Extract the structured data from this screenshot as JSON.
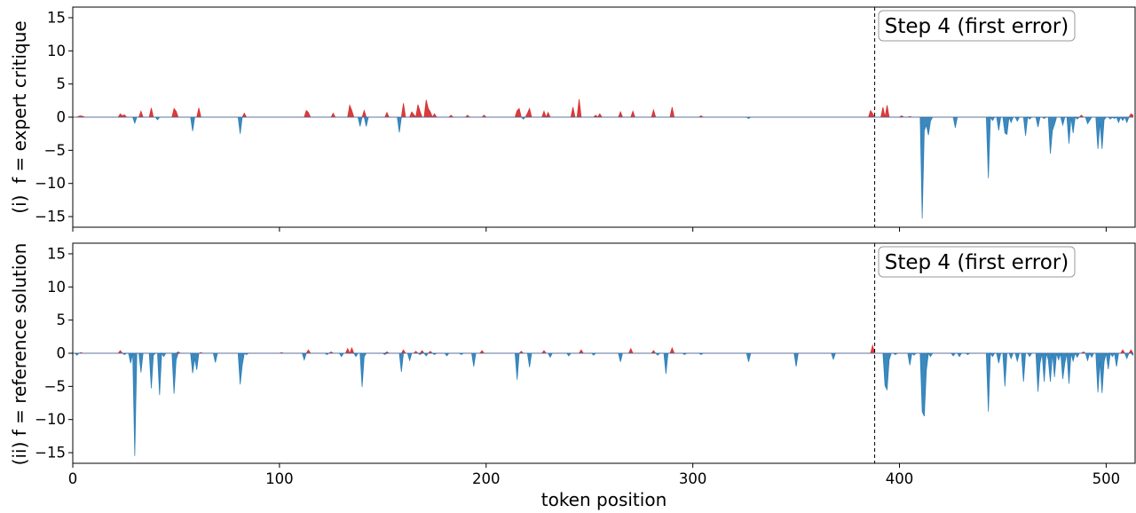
{
  "chart_data": [
    {
      "type": "area",
      "ylabel": "(i)  f = expert critique",
      "xlim": [
        0,
        514
      ],
      "ylim": [
        -16.6,
        16.6
      ],
      "xticks": [
        0,
        100,
        200,
        300,
        400,
        500
      ],
      "xtick_labels": [],
      "yticks": [
        15,
        10,
        5,
        0,
        -5,
        -10,
        -15
      ],
      "ytick_labels": [
        "15",
        "10",
        "5",
        "0",
        "−5",
        "−10",
        "−15"
      ],
      "grid": false,
      "colors": {
        "positive": "#d62728",
        "negative": "#1f77b4"
      },
      "vline": {
        "x": 388,
        "style": "dashed"
      },
      "annotation": {
        "text": "Step 4 (first error)",
        "placement": "top-right"
      },
      "series": [
        {
          "points": [
            [
              3,
              0.15
            ],
            [
              4,
              0.2
            ],
            [
              5,
              0.1
            ],
            [
              23,
              0.5
            ],
            [
              24,
              0.2
            ],
            [
              25,
              0.35
            ],
            [
              30,
              -0.9
            ],
            [
              33,
              0.9
            ],
            [
              38,
              1.4
            ],
            [
              41,
              -0.4
            ],
            [
              49,
              1.3
            ],
            [
              50,
              0.9
            ],
            [
              58,
              -2.1
            ],
            [
              61,
              1.4
            ],
            [
              81,
              -2.5
            ],
            [
              83,
              0.6
            ],
            [
              113,
              1.0
            ],
            [
              114,
              0.7
            ],
            [
              126,
              0.6
            ],
            [
              134,
              1.8
            ],
            [
              135,
              1.0
            ],
            [
              139,
              -1.4
            ],
            [
              141,
              1.0
            ],
            [
              142,
              -1.4
            ],
            [
              152,
              0.7
            ],
            [
              158,
              -2.3
            ],
            [
              160,
              2.1
            ],
            [
              164,
              0.8
            ],
            [
              165,
              0.4
            ],
            [
              167,
              1.9
            ],
            [
              168,
              0.9
            ],
            [
              171,
              2.6
            ],
            [
              172,
              1.3
            ],
            [
              173,
              0.8
            ],
            [
              175,
              0.5
            ],
            [
              183,
              0.3
            ],
            [
              191,
              0.3
            ],
            [
              199,
              0.3
            ],
            [
              215,
              1.0
            ],
            [
              216,
              1.3
            ],
            [
              218,
              -0.3
            ],
            [
              220,
              0.6
            ],
            [
              221,
              1.3
            ],
            [
              228,
              0.9
            ],
            [
              230,
              0.7
            ],
            [
              242,
              1.5
            ],
            [
              245,
              2.7
            ],
            [
              253,
              0.3
            ],
            [
              255,
              0.5
            ],
            [
              265,
              0.8
            ],
            [
              271,
              0.9
            ],
            [
              281,
              1.1
            ],
            [
              290,
              1.5
            ],
            [
              304,
              0.2
            ],
            [
              327,
              -0.2
            ],
            [
              386,
              1.0
            ],
            [
              387,
              0.5
            ],
            [
              392,
              1.5
            ],
            [
              394,
              1.8
            ],
            [
              401,
              0.2
            ],
            [
              405,
              0.1
            ],
            [
              411,
              -15.3
            ],
            [
              412,
              -2.0
            ],
            [
              413,
              -1.2
            ],
            [
              414,
              -2.7
            ],
            [
              415,
              -0.6
            ],
            [
              427,
              -1.6
            ],
            [
              443,
              -9.2
            ],
            [
              445,
              -0.5
            ],
            [
              448,
              -2.0
            ],
            [
              451,
              -2.4
            ],
            [
              452,
              -2.6
            ],
            [
              454,
              -0.8
            ],
            [
              457,
              -0.6
            ],
            [
              461,
              -2.8
            ],
            [
              463,
              -0.3
            ],
            [
              467,
              -1.5
            ],
            [
              470,
              -0.2
            ],
            [
              473,
              -5.5
            ],
            [
              474,
              -2.0
            ],
            [
              475,
              -1.1
            ],
            [
              479,
              -1.2
            ],
            [
              482,
              -4.0
            ],
            [
              484,
              -2.4
            ],
            [
              486,
              -0.3
            ],
            [
              488,
              0.3
            ],
            [
              491,
              -1.0
            ],
            [
              492,
              -0.5
            ],
            [
              496,
              -4.8
            ],
            [
              497,
              -0.8
            ],
            [
              498,
              -4.8
            ],
            [
              499,
              -0.4
            ],
            [
              502,
              -0.3
            ],
            [
              504,
              -0.2
            ],
            [
              506,
              -0.8
            ],
            [
              508,
              -0.5
            ],
            [
              510,
              -0.8
            ],
            [
              512,
              0.5
            ],
            [
              513,
              0.3
            ]
          ]
        }
      ]
    },
    {
      "type": "area",
      "xlabel": "token position",
      "ylabel": "(ii) f = reference solution",
      "xlim": [
        0,
        514
      ],
      "ylim": [
        -16.6,
        16.6
      ],
      "xticks": [
        0,
        100,
        200,
        300,
        400,
        500
      ],
      "xtick_labels": [
        "0",
        "100",
        "200",
        "300",
        "400",
        "500"
      ],
      "yticks": [
        15,
        10,
        5,
        0,
        -5,
        -10,
        -15
      ],
      "ytick_labels": [
        "15",
        "10",
        "5",
        "0",
        "−5",
        "−10",
        "−15"
      ],
      "grid": false,
      "colors": {
        "positive": "#d62728",
        "negative": "#1f77b4"
      },
      "vline": {
        "x": 388,
        "style": "dashed"
      },
      "annotation": {
        "text": "Step 4 (first error)",
        "placement": "top-right"
      },
      "series": [
        {
          "points": [
            [
              2,
              -0.3
            ],
            [
              4,
              0.1
            ],
            [
              23,
              0.4
            ],
            [
              25,
              -0.2
            ],
            [
              28,
              -1.5
            ],
            [
              30,
              -15.5
            ],
            [
              33,
              -2.9
            ],
            [
              38,
              -5.3
            ],
            [
              39,
              -0.3
            ],
            [
              42,
              -6.3
            ],
            [
              44,
              -0.5
            ],
            [
              49,
              -6.1
            ],
            [
              50,
              -1.0
            ],
            [
              51,
              0.2
            ],
            [
              58,
              -3.0
            ],
            [
              59,
              -0.8
            ],
            [
              60,
              -2.5
            ],
            [
              62,
              0.1
            ],
            [
              69,
              -1.4
            ],
            [
              81,
              -4.7
            ],
            [
              82,
              -1.8
            ],
            [
              84,
              -0.2
            ],
            [
              101,
              0.1
            ],
            [
              112,
              -1.0
            ],
            [
              114,
              0.5
            ],
            [
              123,
              -0.2
            ],
            [
              125,
              0.2
            ],
            [
              130,
              -0.5
            ],
            [
              133,
              0.7
            ],
            [
              135,
              0.8
            ],
            [
              137,
              -0.5
            ],
            [
              140,
              -5.1
            ],
            [
              141,
              -0.5
            ],
            [
              151,
              -0.2
            ],
            [
              152,
              0.2
            ],
            [
              159,
              -2.8
            ],
            [
              160,
              0.5
            ],
            [
              163,
              -1.1
            ],
            [
              166,
              0.3
            ],
            [
              168,
              -0.2
            ],
            [
              169,
              0.4
            ],
            [
              171,
              -0.4
            ],
            [
              173,
              0.3
            ],
            [
              175,
              -0.2
            ],
            [
              181,
              -0.4
            ],
            [
              188,
              -0.2
            ],
            [
              194,
              -2.0
            ],
            [
              198,
              0.4
            ],
            [
              215,
              -4.0
            ],
            [
              217,
              0.3
            ],
            [
              221,
              -2.1
            ],
            [
              228,
              0.4
            ],
            [
              231,
              -0.6
            ],
            [
              240,
              -0.4
            ],
            [
              246,
              0.5
            ],
            [
              252,
              -0.3
            ],
            [
              265,
              -1.3
            ],
            [
              270,
              0.7
            ],
            [
              281,
              0.4
            ],
            [
              283,
              -0.3
            ],
            [
              287,
              -3.1
            ],
            [
              290,
              0.8
            ],
            [
              296,
              -0.2
            ],
            [
              304,
              -0.2
            ],
            [
              327,
              -1.3
            ],
            [
              350,
              -2.0
            ],
            [
              368,
              -0.9
            ],
            [
              387,
              1.2
            ],
            [
              393,
              -4.9
            ],
            [
              394,
              -5.5
            ],
            [
              395,
              -1.0
            ],
            [
              398,
              -0.2
            ],
            [
              405,
              -1.8
            ],
            [
              407,
              -0.3
            ],
            [
              411,
              -8.8
            ],
            [
              412,
              -9.5
            ],
            [
              413,
              -2.6
            ],
            [
              415,
              -0.5
            ],
            [
              426,
              -0.4
            ],
            [
              429,
              -0.5
            ],
            [
              433,
              -0.2
            ],
            [
              443,
              -8.8
            ],
            [
              445,
              -0.5
            ],
            [
              448,
              -1.5
            ],
            [
              451,
              -5.0
            ],
            [
              454,
              -0.8
            ],
            [
              457,
              -1.2
            ],
            [
              460,
              -4.3
            ],
            [
              463,
              -0.5
            ],
            [
              467,
              -5.8
            ],
            [
              468,
              -1.5
            ],
            [
              470,
              -4.3
            ],
            [
              472,
              -1.0
            ],
            [
              473,
              -4.3
            ],
            [
              475,
              -3.6
            ],
            [
              477,
              -1.0
            ],
            [
              479,
              -3.9
            ],
            [
              480,
              -1.5
            ],
            [
              482,
              -4.6
            ],
            [
              484,
              -1.2
            ],
            [
              486,
              -0.6
            ],
            [
              489,
              0.2
            ],
            [
              491,
              -1.1
            ],
            [
              493,
              -0.6
            ],
            [
              496,
              -5.9
            ],
            [
              497,
              -1.3
            ],
            [
              498,
              -6.0
            ],
            [
              499,
              -1.3
            ],
            [
              501,
              -2.4
            ],
            [
              503,
              -0.5
            ],
            [
              505,
              -2.0
            ],
            [
              508,
              0.5
            ],
            [
              510,
              -0.8
            ],
            [
              512,
              0.5
            ],
            [
              513,
              -0.3
            ]
          ]
        }
      ]
    }
  ]
}
